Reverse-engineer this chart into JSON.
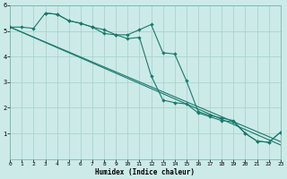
{
  "xlabel": "Humidex (Indice chaleur)",
  "bg_color": "#cceae8",
  "grid_color": "#aad4d0",
  "line_color": "#1a7a6a",
  "xlim": [
    0,
    23
  ],
  "ylim": [
    0,
    6
  ],
  "xticks": [
    0,
    1,
    2,
    3,
    4,
    5,
    6,
    7,
    8,
    9,
    10,
    11,
    12,
    13,
    14,
    15,
    16,
    17,
    18,
    19,
    20,
    21,
    22,
    23
  ],
  "yticks": [
    1,
    2,
    3,
    4,
    5,
    6
  ],
  "straight_line1": {
    "x": [
      0,
      23
    ],
    "y": [
      5.15,
      0.55
    ]
  },
  "straight_line2": {
    "x": [
      0,
      23
    ],
    "y": [
      5.15,
      0.68
    ]
  },
  "marker_line1_x": [
    0,
    1,
    2,
    3,
    4,
    5,
    6,
    7,
    8,
    9,
    10,
    11,
    12,
    13,
    14,
    15,
    16,
    17,
    18,
    19,
    20,
    21,
    22,
    23
  ],
  "marker_line1_y": [
    5.15,
    5.15,
    5.1,
    5.7,
    5.65,
    5.4,
    5.3,
    5.15,
    5.05,
    4.85,
    4.85,
    5.05,
    5.25,
    4.15,
    4.1,
    3.05,
    1.85,
    1.7,
    1.6,
    1.5,
    1.0,
    0.7,
    0.65,
    1.05
  ],
  "marker_line2_x": [
    3,
    4,
    5,
    6,
    7,
    8,
    9,
    10,
    11,
    12,
    13,
    14,
    15,
    16,
    17,
    18,
    19,
    20,
    21,
    22,
    23
  ],
  "marker_line2_y": [
    5.7,
    5.65,
    5.4,
    5.3,
    5.15,
    4.9,
    4.85,
    4.7,
    4.75,
    3.25,
    2.3,
    2.2,
    2.15,
    1.8,
    1.65,
    1.5,
    1.45,
    1.0,
    0.7,
    0.65,
    1.05
  ],
  "xlabel_fontsize": 5.5,
  "tick_fontsize": 4.5,
  "marker_size": 2.2,
  "line_width": 0.8
}
